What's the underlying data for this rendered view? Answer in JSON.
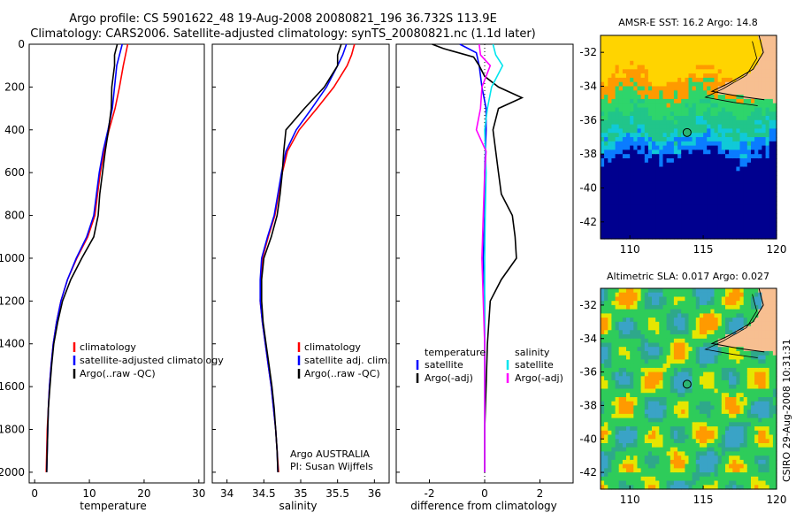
{
  "header": {
    "line1": "Argo profile: CS 5901622_48 19-Aug-2008 20080821_196 36.732S 113.9E",
    "line2": "Climatology: CARS2006. Satellite-adjusted climatology: synTS_20080821.nc (1.1d later)"
  },
  "colors": {
    "climatology": "#ff0000",
    "satellite": "#0000ff",
    "argo": "#000000",
    "salinity_satellite": "#00e5ee",
    "salinity_argo": "#ff00ff",
    "land": "#f7bf91",
    "deep_water": "#00008f"
  },
  "chart_data": [
    {
      "type": "line",
      "xlabel": "temperature",
      "xlim": [
        -1,
        31
      ],
      "ylim": [
        2050,
        0
      ],
      "xticks": [
        0,
        10,
        20,
        30
      ],
      "xtick_labels": [
        "0",
        "10",
        "20",
        "30"
      ],
      "yticks": [
        0,
        200,
        400,
        600,
        800,
        1000,
        1200,
        1400,
        1600,
        1800,
        2000
      ],
      "ytick_labels": [
        "0",
        "200",
        "400",
        "600",
        "800",
        "1000",
        "1200",
        "1400",
        "1600",
        "1800",
        "2000"
      ],
      "legend": [
        "climatology",
        "satellite-adjusted climatology",
        "Argo(..raw -QC)"
      ],
      "series": [
        {
          "name": "climatology",
          "color": "#ff0000",
          "points": [
            [
              17,
              0
            ],
            [
              16.6,
              50
            ],
            [
              16.2,
              100
            ],
            [
              15.5,
              200
            ],
            [
              14.7,
              300
            ],
            [
              13.6,
              400
            ],
            [
              12.7,
              500
            ],
            [
              12,
              600
            ],
            [
              11.5,
              700
            ],
            [
              11,
              800
            ],
            [
              9.7,
              900
            ],
            [
              7.7,
              1000
            ],
            [
              6,
              1100
            ],
            [
              4.8,
              1200
            ],
            [
              4,
              1300
            ],
            [
              3.4,
              1400
            ],
            [
              3,
              1500
            ],
            [
              2.7,
              1600
            ],
            [
              2.5,
              1700
            ],
            [
              2.3,
              1800
            ],
            [
              2.2,
              1900
            ],
            [
              2.1,
              2000
            ]
          ]
        },
        {
          "name": "satellite-adjusted climatology",
          "color": "#0000ff",
          "points": [
            [
              16,
              0
            ],
            [
              15.5,
              50
            ],
            [
              15,
              100
            ],
            [
              14.6,
              200
            ],
            [
              14.2,
              300
            ],
            [
              13.4,
              400
            ],
            [
              12.5,
              500
            ],
            [
              11.8,
              600
            ],
            [
              11.3,
              700
            ],
            [
              10.8,
              800
            ],
            [
              9.5,
              900
            ],
            [
              7.6,
              1000
            ],
            [
              6,
              1100
            ],
            [
              4.8,
              1200
            ],
            [
              4,
              1300
            ],
            [
              3.4,
              1400
            ],
            [
              3,
              1500
            ],
            [
              2.7,
              1600
            ],
            [
              2.5,
              1700
            ],
            [
              2.4,
              1800
            ],
            [
              2.3,
              1900
            ],
            [
              2.2,
              2000
            ]
          ]
        },
        {
          "name": "Argo(..raw -QC)",
          "color": "#000000",
          "points": [
            [
              15.1,
              0
            ],
            [
              14.6,
              50
            ],
            [
              14.6,
              100
            ],
            [
              14.1,
              200
            ],
            [
              14,
              300
            ],
            [
              13.5,
              400
            ],
            [
              12.9,
              500
            ],
            [
              12.4,
              600
            ],
            [
              11.9,
              700
            ],
            [
              11.6,
              800
            ],
            [
              10.8,
              900
            ],
            [
              8.6,
              1000
            ],
            [
              6.6,
              1100
            ],
            [
              5.1,
              1200
            ],
            [
              4.2,
              1300
            ],
            [
              3.5,
              1400
            ],
            [
              3.1,
              1500
            ],
            [
              2.8,
              1600
            ],
            [
              2.5,
              1700
            ],
            [
              2.4,
              1800
            ],
            [
              2.3,
              1900
            ],
            [
              2.2,
              2000
            ]
          ]
        }
      ]
    },
    {
      "type": "line",
      "xlabel": "salinity",
      "xlim": [
        33.8,
        36.2
      ],
      "ylim": [
        2050,
        0
      ],
      "xticks": [
        34,
        34.5,
        35,
        35.5,
        36
      ],
      "xtick_labels": [
        "34",
        "34.5",
        "35",
        "35.5",
        "36"
      ],
      "legend": [
        "climatology",
        "satellite adj. clim.",
        "Argo(..raw -QC)"
      ],
      "annotations": [
        "Argo AUSTRALIA",
        "PI: Susan Wijffels"
      ],
      "series": [
        {
          "name": "climatology",
          "color": "#ff0000",
          "points": [
            [
              35.73,
              0
            ],
            [
              35.69,
              50
            ],
            [
              35.63,
              100
            ],
            [
              35.45,
              200
            ],
            [
              35.22,
              300
            ],
            [
              34.98,
              400
            ],
            [
              34.82,
              500
            ],
            [
              34.75,
              600
            ],
            [
              34.7,
              700
            ],
            [
              34.65,
              800
            ],
            [
              34.56,
              900
            ],
            [
              34.48,
              1000
            ],
            [
              34.46,
              1100
            ],
            [
              34.45,
              1200
            ],
            [
              34.48,
              1300
            ],
            [
              34.52,
              1400
            ],
            [
              34.56,
              1500
            ],
            [
              34.6,
              1600
            ],
            [
              34.63,
              1700
            ],
            [
              34.66,
              1800
            ],
            [
              34.68,
              1900
            ],
            [
              34.7,
              2000
            ]
          ]
        },
        {
          "name": "satellite adj. clim.",
          "color": "#0000ff",
          "points": [
            [
              35.62,
              0
            ],
            [
              35.57,
              50
            ],
            [
              35.5,
              100
            ],
            [
              35.35,
              200
            ],
            [
              35.15,
              300
            ],
            [
              34.94,
              400
            ],
            [
              34.8,
              500
            ],
            [
              34.74,
              600
            ],
            [
              34.69,
              700
            ],
            [
              34.64,
              800
            ],
            [
              34.55,
              900
            ],
            [
              34.47,
              1000
            ],
            [
              34.45,
              1100
            ],
            [
              34.45,
              1200
            ],
            [
              34.48,
              1300
            ],
            [
              34.52,
              1400
            ],
            [
              34.56,
              1500
            ],
            [
              34.6,
              1600
            ],
            [
              34.63,
              1700
            ],
            [
              34.66,
              1800
            ],
            [
              34.68,
              1900
            ],
            [
              34.69,
              2000
            ]
          ]
        },
        {
          "name": "Argo(..raw -QC)",
          "color": "#000000",
          "points": [
            [
              35.55,
              0
            ],
            [
              35.5,
              50
            ],
            [
              35.5,
              100
            ],
            [
              35.32,
              200
            ],
            [
              35.05,
              300
            ],
            [
              34.8,
              400
            ],
            [
              34.77,
              500
            ],
            [
              34.75,
              600
            ],
            [
              34.72,
              700
            ],
            [
              34.68,
              800
            ],
            [
              34.6,
              900
            ],
            [
              34.5,
              1000
            ],
            [
              34.47,
              1100
            ],
            [
              34.47,
              1200
            ],
            [
              34.49,
              1300
            ],
            [
              34.53,
              1400
            ],
            [
              34.57,
              1500
            ],
            [
              34.61,
              1600
            ],
            [
              34.64,
              1700
            ],
            [
              34.66,
              1800
            ],
            [
              34.68,
              1900
            ],
            [
              34.69,
              2000
            ]
          ]
        }
      ]
    },
    {
      "type": "line",
      "xlabel": "difference from climatology",
      "xlim": [
        -3.2,
        3.2
      ],
      "ylim": [
        2050,
        0
      ],
      "xticks": [
        -2,
        0,
        2
      ],
      "xtick_labels": [
        "-2",
        "0",
        "2"
      ],
      "legend_groups": [
        {
          "title": "temperature",
          "entries": [
            "satellite",
            "Argo(-adj)"
          ]
        },
        {
          "title": "salinity",
          "entries": [
            "satellite",
            "Argo(-adj)"
          ]
        }
      ],
      "series": [
        {
          "name": "satellite",
          "group": "temperature",
          "color": "#0000ff",
          "points": [
            [
              -0.9,
              0
            ],
            [
              -0.3,
              40
            ],
            [
              -0.2,
              100
            ],
            [
              -0.1,
              200
            ],
            [
              0.05,
              300
            ],
            [
              0.05,
              400
            ],
            [
              0,
              600
            ],
            [
              0,
              800
            ],
            [
              -0.05,
              1000
            ],
            [
              0,
              1200
            ],
            [
              0,
              1400
            ],
            [
              0,
              1600
            ],
            [
              0,
              1800
            ],
            [
              0,
              2000
            ]
          ]
        },
        {
          "name": "Argo(-adj)",
          "group": "temperature",
          "color": "#000000",
          "points": [
            [
              -1.9,
              0
            ],
            [
              -1.5,
              20
            ],
            [
              -0.4,
              60
            ],
            [
              -0.2,
              100
            ],
            [
              0,
              150
            ],
            [
              0.5,
              200
            ],
            [
              1.35,
              250
            ],
            [
              0.5,
              300
            ],
            [
              0.3,
              400
            ],
            [
              0.4,
              500
            ],
            [
              0.5,
              600
            ],
            [
              0.6,
              700
            ],
            [
              1,
              800
            ],
            [
              1.1,
              900
            ],
            [
              1.15,
              1000
            ],
            [
              0.6,
              1100
            ],
            [
              0.2,
              1200
            ],
            [
              0.1,
              1400
            ],
            [
              0.05,
              1600
            ],
            [
              0,
              1800
            ],
            [
              0,
              2000
            ]
          ]
        },
        {
          "name": "satellite",
          "group": "salinity",
          "color": "#00e5ee",
          "points": [
            [
              0.3,
              0
            ],
            [
              0.4,
              50
            ],
            [
              0.65,
              100
            ],
            [
              0.25,
              200
            ],
            [
              0.1,
              300
            ],
            [
              0,
              400
            ],
            [
              0.05,
              600
            ],
            [
              0.02,
              800
            ],
            [
              0,
              1000
            ],
            [
              0,
              1200
            ],
            [
              0,
              1400
            ],
            [
              0,
              1600
            ],
            [
              0,
              1800
            ],
            [
              0,
              2000
            ]
          ]
        },
        {
          "name": "Argo(-adj)",
          "group": "salinity",
          "color": "#ff00ff",
          "points": [
            [
              -0.2,
              0
            ],
            [
              -0.15,
              50
            ],
            [
              0.2,
              100
            ],
            [
              -0.1,
              200
            ],
            [
              -0.15,
              300
            ],
            [
              -0.3,
              400
            ],
            [
              0.05,
              500
            ],
            [
              0,
              600
            ],
            [
              -0.05,
              800
            ],
            [
              -0.1,
              1000
            ],
            [
              -0.05,
              1200
            ],
            [
              0,
              1400
            ],
            [
              0,
              1600
            ],
            [
              0,
              1800
            ],
            [
              0,
              2000
            ]
          ]
        }
      ]
    },
    {
      "type": "heatmap",
      "title": "AMSR-E SST: 16.2 Argo: 14.8",
      "xlim": [
        108,
        120
      ],
      "ylim": [
        -43,
        -31
      ],
      "xticks": [
        110,
        115,
        120
      ],
      "xtick_labels": [
        "110",
        "115",
        "120"
      ],
      "yticks": [
        -32,
        -34,
        -36,
        -38,
        -40,
        -42
      ],
      "ytick_labels": [
        "-32",
        "-34",
        "-36",
        "-38",
        "-40",
        "-42"
      ],
      "marker": {
        "lon": 113.9,
        "lat": -36.73
      }
    },
    {
      "type": "heatmap",
      "title": "Altimetric SLA: 0.017 Argo: 0.027",
      "xlim": [
        108,
        120
      ],
      "ylim": [
        -43,
        -31
      ],
      "xticks": [
        110,
        115,
        120
      ],
      "xtick_labels": [
        "110",
        "115",
        "120"
      ],
      "yticks": [
        -32,
        -34,
        -36,
        -38,
        -40,
        -42
      ],
      "ytick_labels": [
        "-32",
        "-34",
        "-36",
        "-38",
        "-40",
        "-42"
      ],
      "marker": {
        "lon": 113.9,
        "lat": -36.73
      }
    }
  ],
  "footer": {
    "stamp": "CSIRO 29-Aug-2008 10:31:31"
  }
}
